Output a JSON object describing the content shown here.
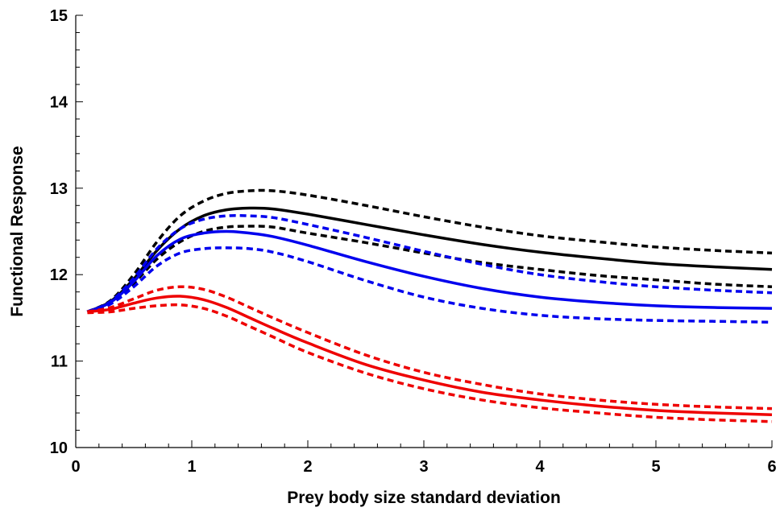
{
  "chart_data": {
    "type": "line",
    "title": "",
    "xlabel": "Prey body size standard deviation",
    "ylabel": "Functional Response",
    "xlim": [
      0,
      6
    ],
    "ylim": [
      10,
      15
    ],
    "x_ticks": [
      "0",
      "1",
      "2",
      "3",
      "4",
      "5",
      "6"
    ],
    "y_ticks": [
      "10",
      "11",
      "12",
      "13",
      "14",
      "15"
    ],
    "grid": false,
    "legend": "none",
    "series": [
      {
        "color": "#000000",
        "style": "dotted",
        "points": [
          [
            0.1,
            11.57
          ],
          [
            0.3,
            11.7
          ],
          [
            0.5,
            12.0
          ],
          [
            0.7,
            12.38
          ],
          [
            0.9,
            12.68
          ],
          [
            1.1,
            12.85
          ],
          [
            1.3,
            12.94
          ],
          [
            1.5,
            12.97
          ],
          [
            1.7,
            12.97
          ],
          [
            2.0,
            12.92
          ],
          [
            2.5,
            12.8
          ],
          [
            3.0,
            12.67
          ],
          [
            3.5,
            12.55
          ],
          [
            4.0,
            12.45
          ],
          [
            4.5,
            12.38
          ],
          [
            5.0,
            12.32
          ],
          [
            5.5,
            12.28
          ],
          [
            6.0,
            12.25
          ]
        ]
      },
      {
        "color": "#000000",
        "style": "solid",
        "points": [
          [
            0.1,
            11.57
          ],
          [
            0.3,
            11.69
          ],
          [
            0.5,
            11.95
          ],
          [
            0.7,
            12.28
          ],
          [
            0.9,
            12.53
          ],
          [
            1.1,
            12.68
          ],
          [
            1.3,
            12.75
          ],
          [
            1.5,
            12.77
          ],
          [
            1.7,
            12.76
          ],
          [
            2.0,
            12.7
          ],
          [
            2.5,
            12.58
          ],
          [
            3.0,
            12.46
          ],
          [
            3.5,
            12.35
          ],
          [
            4.0,
            12.26
          ],
          [
            4.5,
            12.19
          ],
          [
            5.0,
            12.13
          ],
          [
            5.5,
            12.09
          ],
          [
            6.0,
            12.06
          ]
        ]
      },
      {
        "color": "#000000",
        "style": "dotted",
        "points": [
          [
            0.1,
            11.57
          ],
          [
            0.3,
            11.67
          ],
          [
            0.5,
            11.9
          ],
          [
            0.7,
            12.18
          ],
          [
            0.9,
            12.38
          ],
          [
            1.1,
            12.5
          ],
          [
            1.3,
            12.55
          ],
          [
            1.5,
            12.56
          ],
          [
            1.7,
            12.55
          ],
          [
            2.0,
            12.48
          ],
          [
            2.5,
            12.37
          ],
          [
            3.0,
            12.25
          ],
          [
            3.5,
            12.14
          ],
          [
            4.0,
            12.06
          ],
          [
            4.5,
            11.99
          ],
          [
            5.0,
            11.94
          ],
          [
            5.5,
            11.89
          ],
          [
            6.0,
            11.86
          ]
        ]
      },
      {
        "color": "#0000ee",
        "style": "dotted",
        "points": [
          [
            0.1,
            11.57
          ],
          [
            0.3,
            11.69
          ],
          [
            0.5,
            11.96
          ],
          [
            0.7,
            12.3
          ],
          [
            0.9,
            12.53
          ],
          [
            1.1,
            12.64
          ],
          [
            1.3,
            12.68
          ],
          [
            1.5,
            12.68
          ],
          [
            1.7,
            12.66
          ],
          [
            2.0,
            12.58
          ],
          [
            2.5,
            12.43
          ],
          [
            3.0,
            12.27
          ],
          [
            3.5,
            12.12
          ],
          [
            4.0,
            12.0
          ],
          [
            4.5,
            11.92
          ],
          [
            5.0,
            11.86
          ],
          [
            5.5,
            11.82
          ],
          [
            6.0,
            11.79
          ]
        ]
      },
      {
        "color": "#0000ee",
        "style": "solid",
        "points": [
          [
            0.1,
            11.57
          ],
          [
            0.3,
            11.68
          ],
          [
            0.5,
            11.92
          ],
          [
            0.7,
            12.22
          ],
          [
            0.9,
            12.41
          ],
          [
            1.1,
            12.48
          ],
          [
            1.3,
            12.5
          ],
          [
            1.5,
            12.48
          ],
          [
            1.7,
            12.44
          ],
          [
            2.0,
            12.34
          ],
          [
            2.5,
            12.15
          ],
          [
            3.0,
            11.98
          ],
          [
            3.5,
            11.84
          ],
          [
            4.0,
            11.74
          ],
          [
            4.5,
            11.68
          ],
          [
            5.0,
            11.64
          ],
          [
            5.5,
            11.62
          ],
          [
            6.0,
            11.61
          ]
        ]
      },
      {
        "color": "#0000ee",
        "style": "dotted",
        "points": [
          [
            0.1,
            11.57
          ],
          [
            0.3,
            11.66
          ],
          [
            0.5,
            11.86
          ],
          [
            0.7,
            12.1
          ],
          [
            0.9,
            12.25
          ],
          [
            1.1,
            12.3
          ],
          [
            1.3,
            12.31
          ],
          [
            1.5,
            12.3
          ],
          [
            1.7,
            12.26
          ],
          [
            2.0,
            12.15
          ],
          [
            2.5,
            11.93
          ],
          [
            3.0,
            11.74
          ],
          [
            3.5,
            11.61
          ],
          [
            4.0,
            11.53
          ],
          [
            4.5,
            11.49
          ],
          [
            5.0,
            11.47
          ],
          [
            5.5,
            11.46
          ],
          [
            6.0,
            11.45
          ]
        ]
      },
      {
        "color": "#ee0000",
        "style": "dotted",
        "points": [
          [
            0.1,
            11.57
          ],
          [
            0.3,
            11.62
          ],
          [
            0.5,
            11.72
          ],
          [
            0.7,
            11.82
          ],
          [
            0.9,
            11.86
          ],
          [
            1.1,
            11.83
          ],
          [
            1.3,
            11.74
          ],
          [
            1.5,
            11.62
          ],
          [
            1.7,
            11.5
          ],
          [
            2.0,
            11.33
          ],
          [
            2.5,
            11.07
          ],
          [
            3.0,
            10.87
          ],
          [
            3.5,
            10.73
          ],
          [
            4.0,
            10.62
          ],
          [
            4.5,
            10.55
          ],
          [
            5.0,
            10.5
          ],
          [
            5.5,
            10.47
          ],
          [
            6.0,
            10.45
          ]
        ]
      },
      {
        "color": "#ee0000",
        "style": "solid",
        "points": [
          [
            0.1,
            11.57
          ],
          [
            0.3,
            11.6
          ],
          [
            0.5,
            11.67
          ],
          [
            0.7,
            11.73
          ],
          [
            0.9,
            11.75
          ],
          [
            1.1,
            11.71
          ],
          [
            1.3,
            11.62
          ],
          [
            1.5,
            11.5
          ],
          [
            1.7,
            11.38
          ],
          [
            2.0,
            11.21
          ],
          [
            2.5,
            10.96
          ],
          [
            3.0,
            10.78
          ],
          [
            3.5,
            10.64
          ],
          [
            4.0,
            10.55
          ],
          [
            4.5,
            10.48
          ],
          [
            5.0,
            10.43
          ],
          [
            5.5,
            10.4
          ],
          [
            6.0,
            10.38
          ]
        ]
      },
      {
        "color": "#ee0000",
        "style": "dotted",
        "points": [
          [
            0.1,
            11.56
          ],
          [
            0.3,
            11.57
          ],
          [
            0.5,
            11.61
          ],
          [
            0.7,
            11.64
          ],
          [
            0.9,
            11.65
          ],
          [
            1.1,
            11.61
          ],
          [
            1.3,
            11.52
          ],
          [
            1.5,
            11.4
          ],
          [
            1.7,
            11.28
          ],
          [
            2.0,
            11.1
          ],
          [
            2.5,
            10.86
          ],
          [
            3.0,
            10.68
          ],
          [
            3.5,
            10.55
          ],
          [
            4.0,
            10.46
          ],
          [
            4.5,
            10.4
          ],
          [
            5.0,
            10.35
          ],
          [
            5.5,
            10.32
          ],
          [
            6.0,
            10.3
          ]
        ]
      }
    ]
  }
}
